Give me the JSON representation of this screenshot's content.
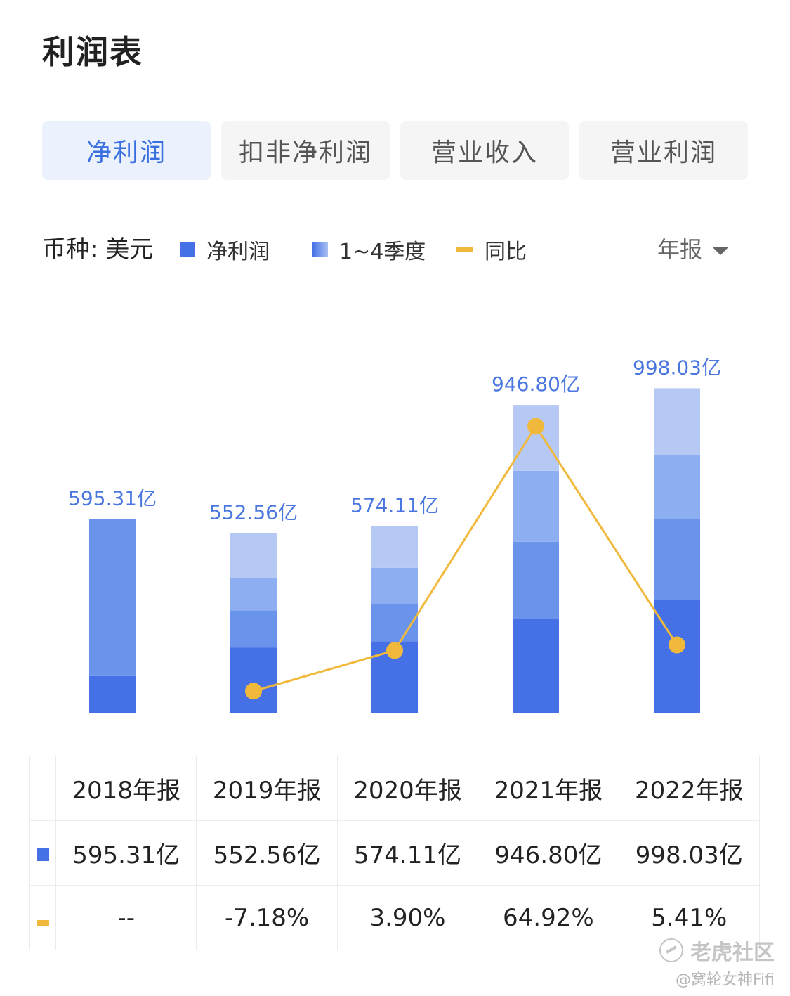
{
  "page_title": "利润表",
  "tabs": [
    {
      "label": "净利润",
      "active": true
    },
    {
      "label": "扣非净利润",
      "active": false
    },
    {
      "label": "营业收入",
      "active": false
    },
    {
      "label": "营业利润",
      "active": false
    }
  ],
  "legend": {
    "currency": "币种: 美元",
    "net_profit": "净利润",
    "quarters": "1~4季度",
    "yoy": "同比"
  },
  "period_selector": "年报",
  "chart_data": {
    "type": "bar",
    "categories": [
      "2018年报",
      "2019年报",
      "2020年报",
      "2021年报",
      "2022年报"
    ],
    "totals": [
      595.31,
      552.56,
      574.11,
      946.8,
      998.03
    ],
    "total_labels": [
      "595.31亿",
      "552.56亿",
      "574.11亿",
      "946.80亿",
      "998.03亿"
    ],
    "quarterly_segments": [
      [
        113.0,
        482.31
      ],
      [
        200.0,
        115.0,
        100.0,
        137.56
      ],
      [
        220.0,
        113.0,
        113.0,
        128.11
      ],
      [
        288.0,
        238.0,
        218.0,
        202.8
      ],
      [
        346.0,
        250.0,
        196.0,
        206.03
      ]
    ],
    "segment_colors": [
      "#4671e6",
      "#6a93ec",
      "#8eaef2",
      "#b6c9f5"
    ],
    "yoy": [
      null,
      -7.18,
      3.9,
      64.92,
      5.41
    ],
    "yoy_color": "#f0b93c",
    "label_color": "#4a76e0"
  },
  "table": {
    "headers": [
      "2018年报",
      "2019年报",
      "2020年报",
      "2021年报",
      "2022年报"
    ],
    "values": [
      "595.31亿",
      "552.56亿",
      "574.11亿",
      "946.80亿",
      "998.03亿"
    ],
    "yoy": [
      "--",
      "-7.18%",
      "3.90%",
      "64.92%",
      "5.41%"
    ]
  },
  "watermark": {
    "brand": "老虎社区",
    "author": "@窝轮女神Fifi"
  }
}
